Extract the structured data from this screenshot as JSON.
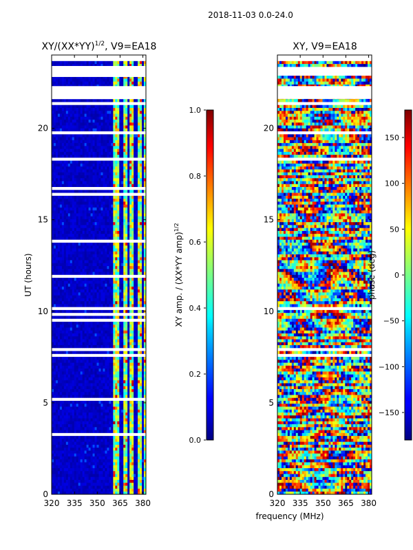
{
  "suptitle": "2018-11-03 0.0-24.0",
  "shared_xlabel": "frequency (MHz)",
  "chart_data": [
    {
      "type": "heatmap",
      "title": "XY/(XX*YY)",
      "title_exponent": "1/2",
      "title_suffix": ", V9=EA18",
      "xlabel": "",
      "ylabel": "UT (hours)",
      "xlim": [
        320,
        382
      ],
      "ylim": [
        0,
        24
      ],
      "xticks": [
        320,
        335,
        350,
        365,
        380
      ],
      "yticks": [
        0,
        5,
        10,
        15,
        20
      ],
      "colorbar": {
        "label": "XY amp. / (XX*YY amp)",
        "label_exponent": "1/2",
        "range": [
          0.0,
          1.0
        ],
        "ticks": [
          "0.0",
          "0.2",
          "0.4",
          "0.6",
          "0.8",
          "1.0"
        ],
        "colormap": "jet"
      },
      "data_gaps_hours": [
        [
          21.6,
          22.3
        ],
        [
          22.8,
          23.4
        ],
        [
          23.7,
          24.0
        ]
      ],
      "bright_channel_bands_mhz": [
        [
          360,
          365
        ],
        [
          367,
          370
        ],
        [
          371.5,
          374.5
        ],
        [
          376,
          379
        ],
        [
          380,
          382
        ]
      ]
    },
    {
      "type": "heatmap",
      "title": "XY, V9=EA18",
      "xlabel": "frequency (MHz)",
      "ylabel": "",
      "xlim": [
        320,
        382
      ],
      "ylim": [
        0,
        24
      ],
      "xticks": [
        320,
        335,
        350,
        365,
        380
      ],
      "yticks": [
        0,
        5,
        10,
        15,
        20
      ],
      "colorbar": {
        "label": "phase (deg)",
        "range": [
          -180,
          180
        ],
        "ticks": [
          "-150",
          "-100",
          "-50",
          "0",
          "50",
          "100",
          "150"
        ],
        "colormap": "jet"
      },
      "data_gaps_hours": [
        [
          21.6,
          22.3
        ],
        [
          23.7,
          24.0
        ]
      ]
    }
  ]
}
